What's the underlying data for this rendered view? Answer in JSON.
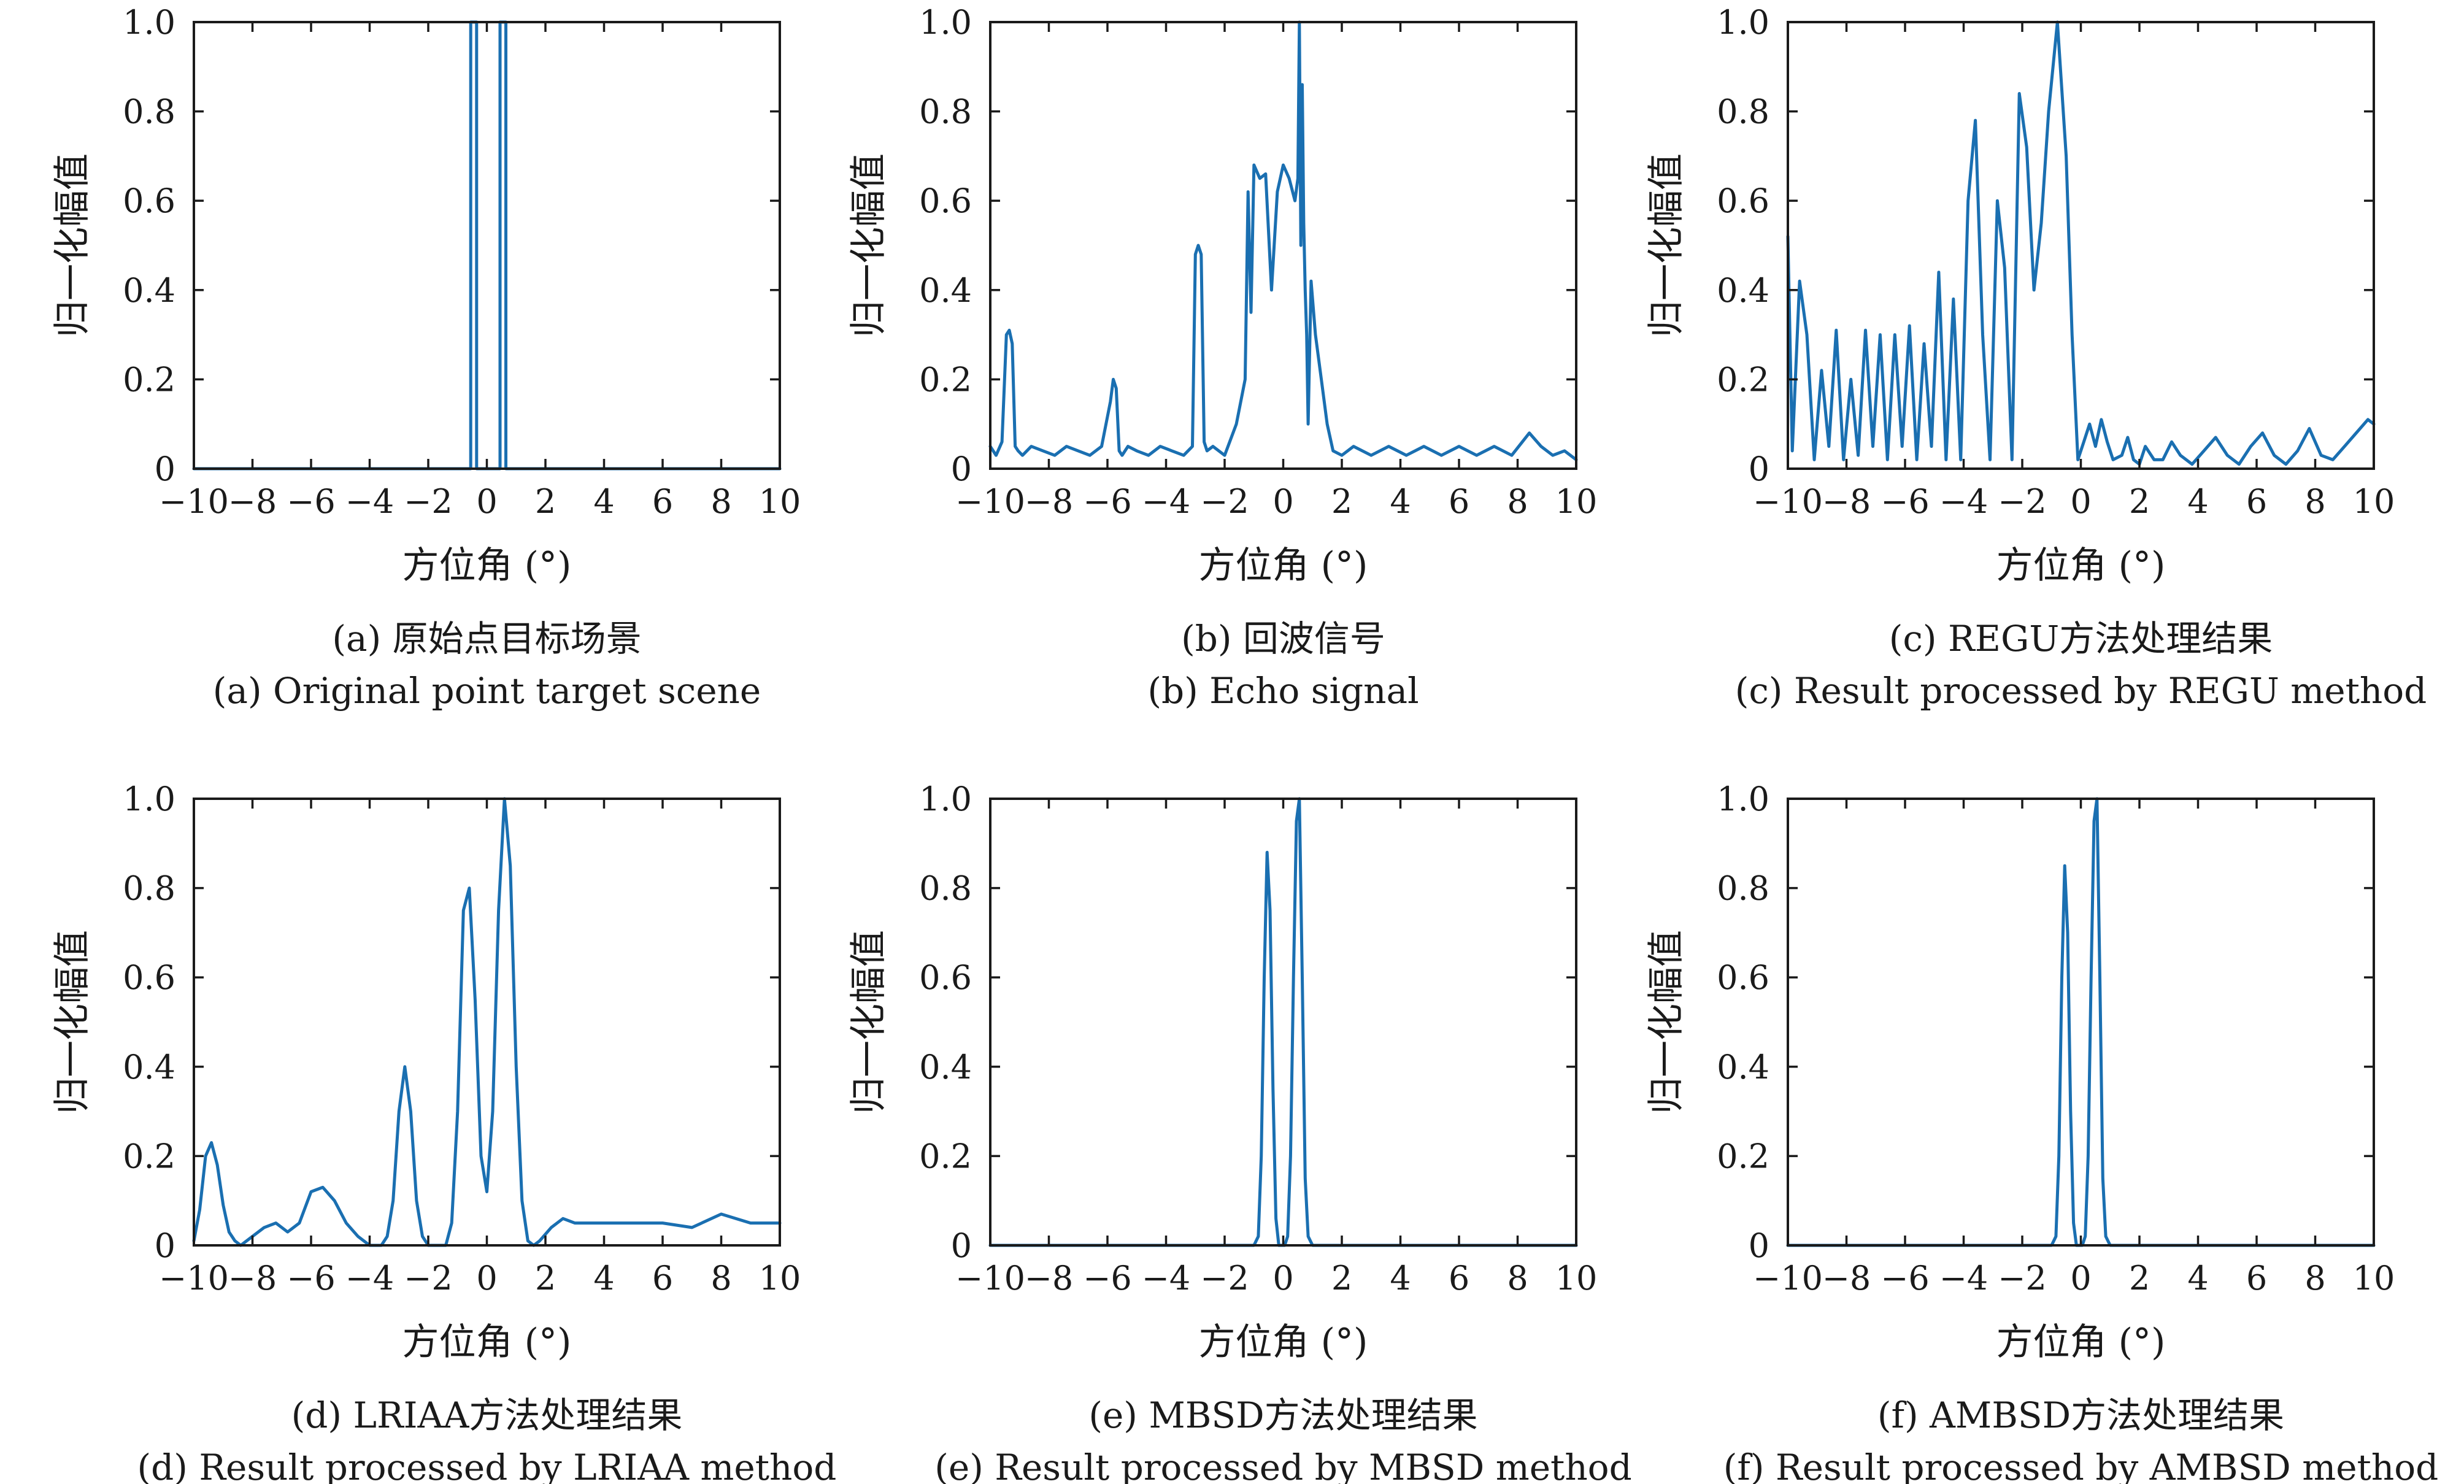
{
  "figure_kind": "six-panel azimuth profile comparison",
  "colors": {
    "series": "#1a6fb1",
    "axes": "#1a1a1a",
    "background": "#ffffff"
  },
  "chart_data": [
    {
      "type": "line",
      "panel": "a",
      "caption_cn": "(a) 原始点目标场景",
      "caption_en": "(a) Original point target scene",
      "xlabel": "方位角 (°)",
      "ylabel": "归一化幅值",
      "xlim": [
        -10,
        10
      ],
      "ylim": [
        0,
        1
      ],
      "xticks": [
        -10,
        -8,
        -6,
        -4,
        -2,
        0,
        2,
        4,
        6,
        8,
        10
      ],
      "yticks": [
        0,
        0.2,
        0.4,
        0.6,
        0.8,
        1.0
      ],
      "xtick_labels": [
        "−10",
        "−8",
        "−6",
        "−4",
        "−2",
        "0",
        "2",
        "4",
        "6",
        "8",
        "10"
      ],
      "ytick_labels": [
        "0",
        "0.2",
        "0.4",
        "0.6",
        "0.8",
        "1.0"
      ],
      "series": [
        {
          "name": "scene",
          "x": [
            -10,
            -0.55,
            -0.55,
            -0.35,
            -0.35,
            0.45,
            0.45,
            0.65,
            0.65,
            10
          ],
          "y": [
            0,
            0,
            1,
            1,
            0,
            0,
            1,
            1,
            0,
            0
          ]
        }
      ]
    },
    {
      "type": "line",
      "panel": "b",
      "caption_cn": "(b) 回波信号",
      "caption_en": "(b) Echo signal",
      "xlabel": "方位角 (°)",
      "ylabel": "归一化幅值",
      "xlim": [
        -10,
        10
      ],
      "ylim": [
        0,
        1
      ],
      "xticks": [
        -10,
        -8,
        -6,
        -4,
        -2,
        0,
        2,
        4,
        6,
        8,
        10
      ],
      "yticks": [
        0,
        0.2,
        0.4,
        0.6,
        0.8,
        1.0
      ],
      "xtick_labels": [
        "−10",
        "−8",
        "−6",
        "−4",
        "−2",
        "0",
        "2",
        "4",
        "6",
        "8",
        "10"
      ],
      "ytick_labels": [
        "0",
        "0.2",
        "0.4",
        "0.6",
        "0.8",
        "1.0"
      ],
      "series": [
        {
          "name": "echo",
          "x": [
            -10,
            -9.8,
            -9.6,
            -9.45,
            -9.35,
            -9.25,
            -9.15,
            -9.05,
            -8.9,
            -8.6,
            -8.2,
            -7.8,
            -7.4,
            -7,
            -6.6,
            -6.2,
            -5.9,
            -5.8,
            -5.7,
            -5.6,
            -5.5,
            -5.3,
            -5,
            -4.6,
            -4.2,
            -3.8,
            -3.4,
            -3.1,
            -3.0,
            -2.9,
            -2.8,
            -2.7,
            -2.6,
            -2.4,
            -2.0,
            -1.6,
            -1.3,
            -1.2,
            -1.1,
            -1.0,
            -0.8,
            -0.6,
            -0.4,
            -0.2,
            0,
            0.2,
            0.4,
            0.5,
            0.55,
            0.6,
            0.65,
            0.7,
            0.75,
            0.8,
            0.85,
            0.95,
            1.1,
            1.3,
            1.5,
            1.7,
            2.0,
            2.4,
            3,
            3.6,
            4.2,
            4.8,
            5.4,
            6,
            6.6,
            7.2,
            7.8,
            8.4,
            8.8,
            9.2,
            9.6,
            10
          ],
          "y": [
            0.05,
            0.03,
            0.06,
            0.3,
            0.31,
            0.28,
            0.05,
            0.04,
            0.03,
            0.05,
            0.04,
            0.03,
            0.05,
            0.04,
            0.03,
            0.05,
            0.15,
            0.2,
            0.18,
            0.04,
            0.03,
            0.05,
            0.04,
            0.03,
            0.05,
            0.04,
            0.03,
            0.05,
            0.48,
            0.5,
            0.48,
            0.06,
            0.04,
            0.05,
            0.03,
            0.1,
            0.2,
            0.62,
            0.35,
            0.68,
            0.65,
            0.66,
            0.4,
            0.62,
            0.68,
            0.65,
            0.6,
            0.65,
            1.0,
            0.5,
            0.86,
            0.55,
            0.4,
            0.3,
            0.1,
            0.42,
            0.3,
            0.2,
            0.1,
            0.04,
            0.03,
            0.05,
            0.03,
            0.05,
            0.03,
            0.05,
            0.03,
            0.05,
            0.03,
            0.05,
            0.03,
            0.08,
            0.05,
            0.03,
            0.04,
            0.02
          ]
        }
      ]
    },
    {
      "type": "line",
      "panel": "c",
      "caption_cn": "(c) REGU方法处理结果",
      "caption_en": "(c) Result processed by REGU method",
      "xlabel": "方位角 (°)",
      "ylabel": "归一化幅值",
      "xlim": [
        -10,
        10
      ],
      "ylim": [
        0,
        1
      ],
      "xticks": [
        -10,
        -8,
        -6,
        -4,
        -2,
        0,
        2,
        4,
        6,
        8,
        10
      ],
      "yticks": [
        0,
        0.2,
        0.4,
        0.6,
        0.8,
        1.0
      ],
      "xtick_labels": [
        "−10",
        "−8",
        "−6",
        "−4",
        "−2",
        "0",
        "2",
        "4",
        "6",
        "8",
        "10"
      ],
      "ytick_labels": [
        "0",
        "0.2",
        "0.4",
        "0.6",
        "0.8",
        "1.0"
      ],
      "series": [
        {
          "name": "REGU",
          "x": [
            -10,
            -9.85,
            -9.6,
            -9.35,
            -9.1,
            -8.85,
            -8.6,
            -8.35,
            -8.1,
            -7.85,
            -7.6,
            -7.35,
            -7.1,
            -6.85,
            -6.6,
            -6.35,
            -6.1,
            -5.85,
            -5.6,
            -5.35,
            -5.1,
            -4.85,
            -4.6,
            -4.35,
            -4.1,
            -3.85,
            -3.6,
            -3.35,
            -3.1,
            -2.85,
            -2.6,
            -2.35,
            -2.1,
            -1.85,
            -1.6,
            -1.35,
            -1.1,
            -0.8,
            -0.5,
            -0.3,
            -0.1,
            0.1,
            0.3,
            0.5,
            0.7,
            0.9,
            1.1,
            1.4,
            1.6,
            1.8,
            2.0,
            2.2,
            2.5,
            2.8,
            3.1,
            3.4,
            3.8,
            4.2,
            4.6,
            5.0,
            5.4,
            5.8,
            6.2,
            6.6,
            7.0,
            7.4,
            7.8,
            8.2,
            8.6,
            9.0,
            9.4,
            9.8,
            10
          ],
          "y": [
            0.52,
            0.04,
            0.42,
            0.3,
            0.02,
            0.22,
            0.05,
            0.31,
            0.02,
            0.2,
            0.03,
            0.31,
            0.05,
            0.3,
            0.02,
            0.3,
            0.05,
            0.32,
            0.02,
            0.28,
            0.05,
            0.44,
            0.02,
            0.38,
            0.02,
            0.6,
            0.78,
            0.3,
            0.02,
            0.6,
            0.45,
            0.02,
            0.84,
            0.72,
            0.4,
            0.55,
            0.8,
            1.0,
            0.7,
            0.3,
            0.02,
            0.06,
            0.1,
            0.05,
            0.11,
            0.06,
            0.02,
            0.03,
            0.07,
            0.02,
            0.01,
            0.05,
            0.02,
            0.02,
            0.06,
            0.03,
            0.01,
            0.04,
            0.07,
            0.03,
            0.01,
            0.05,
            0.08,
            0.03,
            0.01,
            0.04,
            0.09,
            0.03,
            0.02,
            0.05,
            0.08,
            0.11,
            0.1
          ]
        }
      ]
    },
    {
      "type": "line",
      "panel": "d",
      "caption_cn": "(d) LRIAA方法处理结果",
      "caption_en": "(d) Result processed by LRIAA method",
      "xlabel": "方位角 (°)",
      "ylabel": "归一化幅值",
      "xlim": [
        -10,
        10
      ],
      "ylim": [
        0,
        1
      ],
      "xticks": [
        -10,
        -8,
        -6,
        -4,
        -2,
        0,
        2,
        4,
        6,
        8,
        10
      ],
      "yticks": [
        0,
        0.2,
        0.4,
        0.6,
        0.8,
        1.0
      ],
      "xtick_labels": [
        "−10",
        "−8",
        "−6",
        "−4",
        "−2",
        "0",
        "2",
        "4",
        "6",
        "8",
        "10"
      ],
      "ytick_labels": [
        "0",
        "0.2",
        "0.4",
        "0.6",
        "0.8",
        "1.0"
      ],
      "series": [
        {
          "name": "LRIAA",
          "x": [
            -10,
            -9.8,
            -9.6,
            -9.4,
            -9.2,
            -9.0,
            -8.8,
            -8.6,
            -8.4,
            -8.0,
            -7.6,
            -7.2,
            -6.8,
            -6.4,
            -6.0,
            -5.6,
            -5.2,
            -4.8,
            -4.4,
            -4.0,
            -3.6,
            -3.4,
            -3.2,
            -3.0,
            -2.8,
            -2.6,
            -2.4,
            -2.2,
            -2.0,
            -1.8,
            -1.6,
            -1.4,
            -1.2,
            -1.0,
            -0.8,
            -0.6,
            -0.4,
            -0.2,
            0,
            0.2,
            0.4,
            0.6,
            0.8,
            1.0,
            1.2,
            1.4,
            1.6,
            1.8,
            2.2,
            2.6,
            3.0,
            4.0,
            5.0,
            6.0,
            7.0,
            8.0,
            9.0,
            10
          ],
          "y": [
            0.01,
            0.08,
            0.2,
            0.23,
            0.18,
            0.09,
            0.03,
            0.01,
            0.0,
            0.02,
            0.04,
            0.05,
            0.03,
            0.05,
            0.12,
            0.13,
            0.1,
            0.05,
            0.02,
            0.0,
            0.0,
            0.02,
            0.1,
            0.3,
            0.4,
            0.3,
            0.1,
            0.02,
            0.0,
            0.0,
            0.0,
            0.0,
            0.05,
            0.3,
            0.75,
            0.8,
            0.55,
            0.2,
            0.12,
            0.3,
            0.75,
            1.0,
            0.85,
            0.4,
            0.1,
            0.01,
            0.0,
            0.01,
            0.04,
            0.06,
            0.05,
            0.05,
            0.05,
            0.05,
            0.04,
            0.07,
            0.05,
            0.05
          ]
        }
      ]
    },
    {
      "type": "line",
      "panel": "e",
      "caption_cn": "(e) MBSD方法处理结果",
      "caption_en": "(e) Result processed by MBSD method",
      "xlabel": "方位角 (°)",
      "ylabel": "归一化幅值",
      "xlim": [
        -10,
        10
      ],
      "ylim": [
        0,
        1
      ],
      "xticks": [
        -10,
        -8,
        -6,
        -4,
        -2,
        0,
        2,
        4,
        6,
        8,
        10
      ],
      "yticks": [
        0,
        0.2,
        0.4,
        0.6,
        0.8,
        1.0
      ],
      "xtick_labels": [
        "−10",
        "−8",
        "−6",
        "−4",
        "−2",
        "0",
        "2",
        "4",
        "6",
        "8",
        "10"
      ],
      "ytick_labels": [
        "0",
        "0.2",
        "0.4",
        "0.6",
        "0.8",
        "1.0"
      ],
      "series": [
        {
          "name": "MBSD",
          "x": [
            -10,
            -1.0,
            -0.85,
            -0.75,
            -0.65,
            -0.55,
            -0.45,
            -0.35,
            -0.25,
            -0.15,
            -0.05,
            0.05,
            0.15,
            0.25,
            0.35,
            0.45,
            0.55,
            0.65,
            0.75,
            0.85,
            1.0,
            10
          ],
          "y": [
            0,
            0,
            0.02,
            0.2,
            0.6,
            0.88,
            0.75,
            0.35,
            0.06,
            0.0,
            0.0,
            0.0,
            0.02,
            0.2,
            0.6,
            0.95,
            1.0,
            0.6,
            0.15,
            0.02,
            0,
            0
          ]
        }
      ]
    },
    {
      "type": "line",
      "panel": "f",
      "caption_cn": "(f) AMBSD方法处理结果",
      "caption_en": "(f) Result processed by AMBSD method",
      "xlabel": "方位角 (°)",
      "ylabel": "归一化幅值",
      "xlim": [
        -10,
        10
      ],
      "ylim": [
        0,
        1
      ],
      "xticks": [
        -10,
        -8,
        -6,
        -4,
        -2,
        0,
        2,
        4,
        6,
        8,
        10
      ],
      "yticks": [
        0,
        0.2,
        0.4,
        0.6,
        0.8,
        1.0
      ],
      "xtick_labels": [
        "−10",
        "−8",
        "−6",
        "−4",
        "−2",
        "0",
        "2",
        "4",
        "6",
        "8",
        "10"
      ],
      "ytick_labels": [
        "0",
        "0.2",
        "0.4",
        "0.6",
        "0.8",
        "1.0"
      ],
      "series": [
        {
          "name": "AMBSD",
          "x": [
            -10,
            -1.0,
            -0.85,
            -0.75,
            -0.65,
            -0.55,
            -0.45,
            -0.35,
            -0.25,
            -0.15,
            -0.05,
            0.05,
            0.15,
            0.25,
            0.35,
            0.45,
            0.55,
            0.65,
            0.75,
            0.85,
            1.0,
            10
          ],
          "y": [
            0,
            0,
            0.02,
            0.2,
            0.6,
            0.85,
            0.7,
            0.3,
            0.05,
            0.0,
            0.0,
            0.0,
            0.02,
            0.2,
            0.6,
            0.95,
            1.0,
            0.6,
            0.15,
            0.02,
            0,
            0
          ]
        }
      ]
    }
  ]
}
